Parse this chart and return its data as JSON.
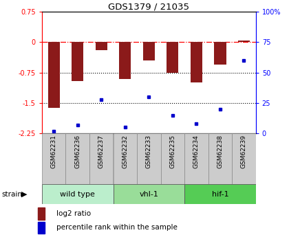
{
  "title": "GDS1379 / 21035",
  "samples": [
    "GSM62231",
    "GSM62236",
    "GSM62237",
    "GSM62232",
    "GSM62233",
    "GSM62235",
    "GSM62234",
    "GSM62238",
    "GSM62239"
  ],
  "log2_ratios": [
    -1.62,
    -0.95,
    -0.2,
    -0.9,
    -0.45,
    -0.75,
    -1.0,
    -0.55,
    0.05
  ],
  "percentile_ranks": [
    2,
    7,
    28,
    5,
    30,
    15,
    8,
    20,
    60
  ],
  "groups": [
    {
      "label": "wild type",
      "start": 0,
      "end": 3,
      "color": "#bbeecc"
    },
    {
      "label": "vhl-1",
      "start": 3,
      "end": 6,
      "color": "#99dd99"
    },
    {
      "label": "hif-1",
      "start": 6,
      "end": 9,
      "color": "#55cc55"
    }
  ],
  "group_row_label": "strain",
  "ylim_left": [
    -2.25,
    0.75
  ],
  "ylim_right": [
    0,
    100
  ],
  "yticks_left": [
    -2.25,
    -1.5,
    -0.75,
    0,
    0.75
  ],
  "yticks_right": [
    0,
    25,
    50,
    75,
    100
  ],
  "ytick_labels_left": [
    "-2.25",
    "-1.5",
    "-0.75",
    "0",
    "0.75"
  ],
  "ytick_labels_right": [
    "0",
    "25",
    "50",
    "75",
    "100%"
  ],
  "hlines_dotted": [
    -0.75,
    -1.5
  ],
  "hline_dashdot": 0,
  "bar_color": "#8B1A1A",
  "dot_color": "#0000CC",
  "background_color": "#ffffff",
  "plot_bg": "#ffffff",
  "sample_box_color": "#cccccc",
  "legend_items": [
    {
      "color": "#8B1A1A",
      "label": "log2 ratio"
    },
    {
      "color": "#0000CC",
      "label": "percentile rank within the sample"
    }
  ]
}
